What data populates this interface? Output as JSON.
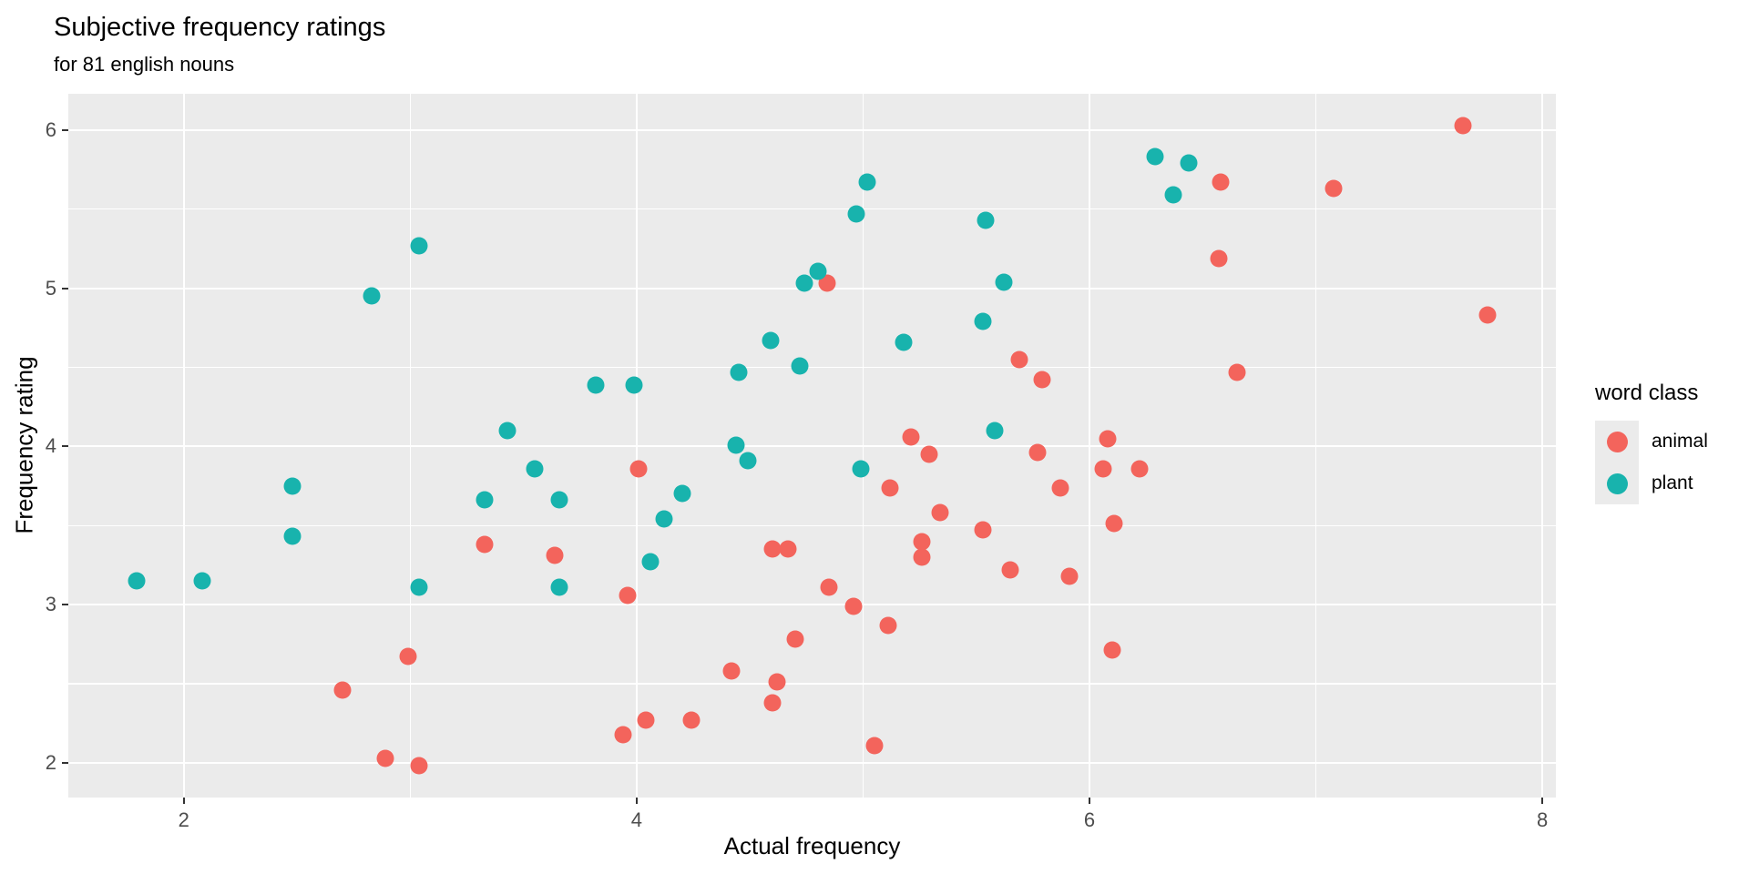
{
  "chart_data": {
    "type": "scatter",
    "title": "Subjective frequency ratings",
    "subtitle": "for 81 english nouns",
    "xlabel": "Actual frequency",
    "ylabel": "Frequency rating",
    "xlim": [
      1.49,
      8.06
    ],
    "ylim": [
      1.78,
      6.23
    ],
    "x_ticks": [
      2,
      4,
      6,
      8
    ],
    "y_ticks": [
      2,
      3,
      4,
      5,
      6
    ],
    "x_minor_gridlines": [
      3,
      5,
      7
    ],
    "y_minor_gridlines": [
      2.5,
      3.5,
      4.5,
      5.5
    ],
    "grid": true,
    "legend": {
      "title": "word class",
      "position": "right"
    },
    "series": [
      {
        "name": "animal",
        "color": "#F3645C",
        "points": [
          [
            2.7,
            2.46
          ],
          [
            2.89,
            2.03
          ],
          [
            2.99,
            2.67
          ],
          [
            3.04,
            1.98
          ],
          [
            3.33,
            3.38
          ],
          [
            3.64,
            3.31
          ],
          [
            3.94,
            2.18
          ],
          [
            3.96,
            3.06
          ],
          [
            4.01,
            3.86
          ],
          [
            4.04,
            2.27
          ],
          [
            4.24,
            2.27
          ],
          [
            4.42,
            2.58
          ],
          [
            4.6,
            3.35
          ],
          [
            4.6,
            2.38
          ],
          [
            4.62,
            2.51
          ],
          [
            4.67,
            3.35
          ],
          [
            4.7,
            2.78
          ],
          [
            4.84,
            5.03
          ],
          [
            4.85,
            3.11
          ],
          [
            4.96,
            2.99
          ],
          [
            5.05,
            2.11
          ],
          [
            5.11,
            2.87
          ],
          [
            5.12,
            3.74
          ],
          [
            5.21,
            4.06
          ],
          [
            5.26,
            3.4
          ],
          [
            5.26,
            3.3
          ],
          [
            5.29,
            3.95
          ],
          [
            5.34,
            3.58
          ],
          [
            5.53,
            3.47
          ],
          [
            5.65,
            3.22
          ],
          [
            5.69,
            4.55
          ],
          [
            5.77,
            3.96
          ],
          [
            5.79,
            4.42
          ],
          [
            5.87,
            3.74
          ],
          [
            5.91,
            3.18
          ],
          [
            6.06,
            3.86
          ],
          [
            6.08,
            4.05
          ],
          [
            6.1,
            2.71
          ],
          [
            6.11,
            3.51
          ],
          [
            6.22,
            3.86
          ],
          [
            6.57,
            5.19
          ],
          [
            6.58,
            5.67
          ],
          [
            6.65,
            4.47
          ],
          [
            7.08,
            5.63
          ],
          [
            7.65,
            6.03
          ],
          [
            7.76,
            4.83
          ]
        ]
      },
      {
        "name": "plant",
        "color": "#18B3AD",
        "points": [
          [
            1.79,
            3.15
          ],
          [
            2.08,
            3.15
          ],
          [
            2.48,
            3.75
          ],
          [
            2.48,
            3.43
          ],
          [
            2.83,
            4.95
          ],
          [
            3.04,
            5.27
          ],
          [
            3.04,
            3.11
          ],
          [
            3.33,
            3.66
          ],
          [
            3.43,
            4.1
          ],
          [
            3.55,
            3.86
          ],
          [
            3.66,
            3.66
          ],
          [
            3.66,
            3.11
          ],
          [
            3.82,
            4.39
          ],
          [
            3.99,
            4.39
          ],
          [
            4.06,
            3.27
          ],
          [
            4.12,
            3.54
          ],
          [
            4.2,
            3.7
          ],
          [
            4.44,
            4.01
          ],
          [
            4.45,
            4.47
          ],
          [
            4.49,
            3.91
          ],
          [
            4.59,
            4.67
          ],
          [
            4.72,
            4.51
          ],
          [
            4.74,
            5.03
          ],
          [
            4.8,
            5.11
          ],
          [
            4.97,
            5.47
          ],
          [
            4.99,
            3.86
          ],
          [
            5.02,
            5.67
          ],
          [
            5.18,
            4.66
          ],
          [
            5.53,
            4.79
          ],
          [
            5.54,
            5.43
          ],
          [
            5.58,
            4.1
          ],
          [
            5.62,
            5.04
          ],
          [
            6.29,
            5.83
          ],
          [
            6.37,
            5.59
          ],
          [
            6.44,
            5.79
          ]
        ]
      }
    ]
  },
  "style": {
    "panel_bg": "#EBEBEB",
    "grid_color": "#FFFFFF",
    "tick_mark_color": "#333333",
    "tick_label_color": "#4D4D4D",
    "legend_key_bg": "#EBEBEB",
    "animal_color": "#F3645C",
    "plant_color": "#18B3AD"
  }
}
